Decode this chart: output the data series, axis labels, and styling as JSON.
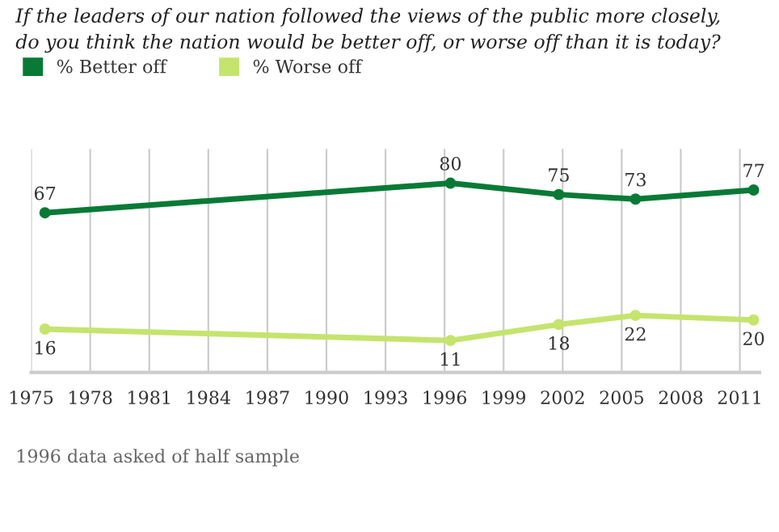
{
  "chart_data": {
    "type": "line",
    "title": "If the leaders of our nation followed the views of the public more closely,\ndo you think the nation would be better off, or worse off than it is today?",
    "x": [
      1975.7,
      1996.3,
      2001.8,
      2005.7,
      2011.7
    ],
    "series": [
      {
        "name": "% Better off",
        "color": "#087a36",
        "values": [
          67,
          80,
          75,
          73,
          77
        ]
      },
      {
        "name": "% Worse off",
        "color": "#c5e46e",
        "values": [
          16,
          11,
          18,
          22,
          20
        ]
      }
    ],
    "xlim": [
      1975,
      2012
    ],
    "xticks": [
      1975,
      1978,
      1981,
      1984,
      1987,
      1990,
      1993,
      1996,
      1999,
      2002,
      2005,
      2008,
      2011
    ],
    "ylim": [
      -3,
      95
    ],
    "tick_labels": "x",
    "grid": "x",
    "legend": "top left",
    "marker": "circle",
    "line_style": "solid",
    "data_labels": true,
    "annotations": [
      "1996 data asked of half sample"
    ]
  }
}
